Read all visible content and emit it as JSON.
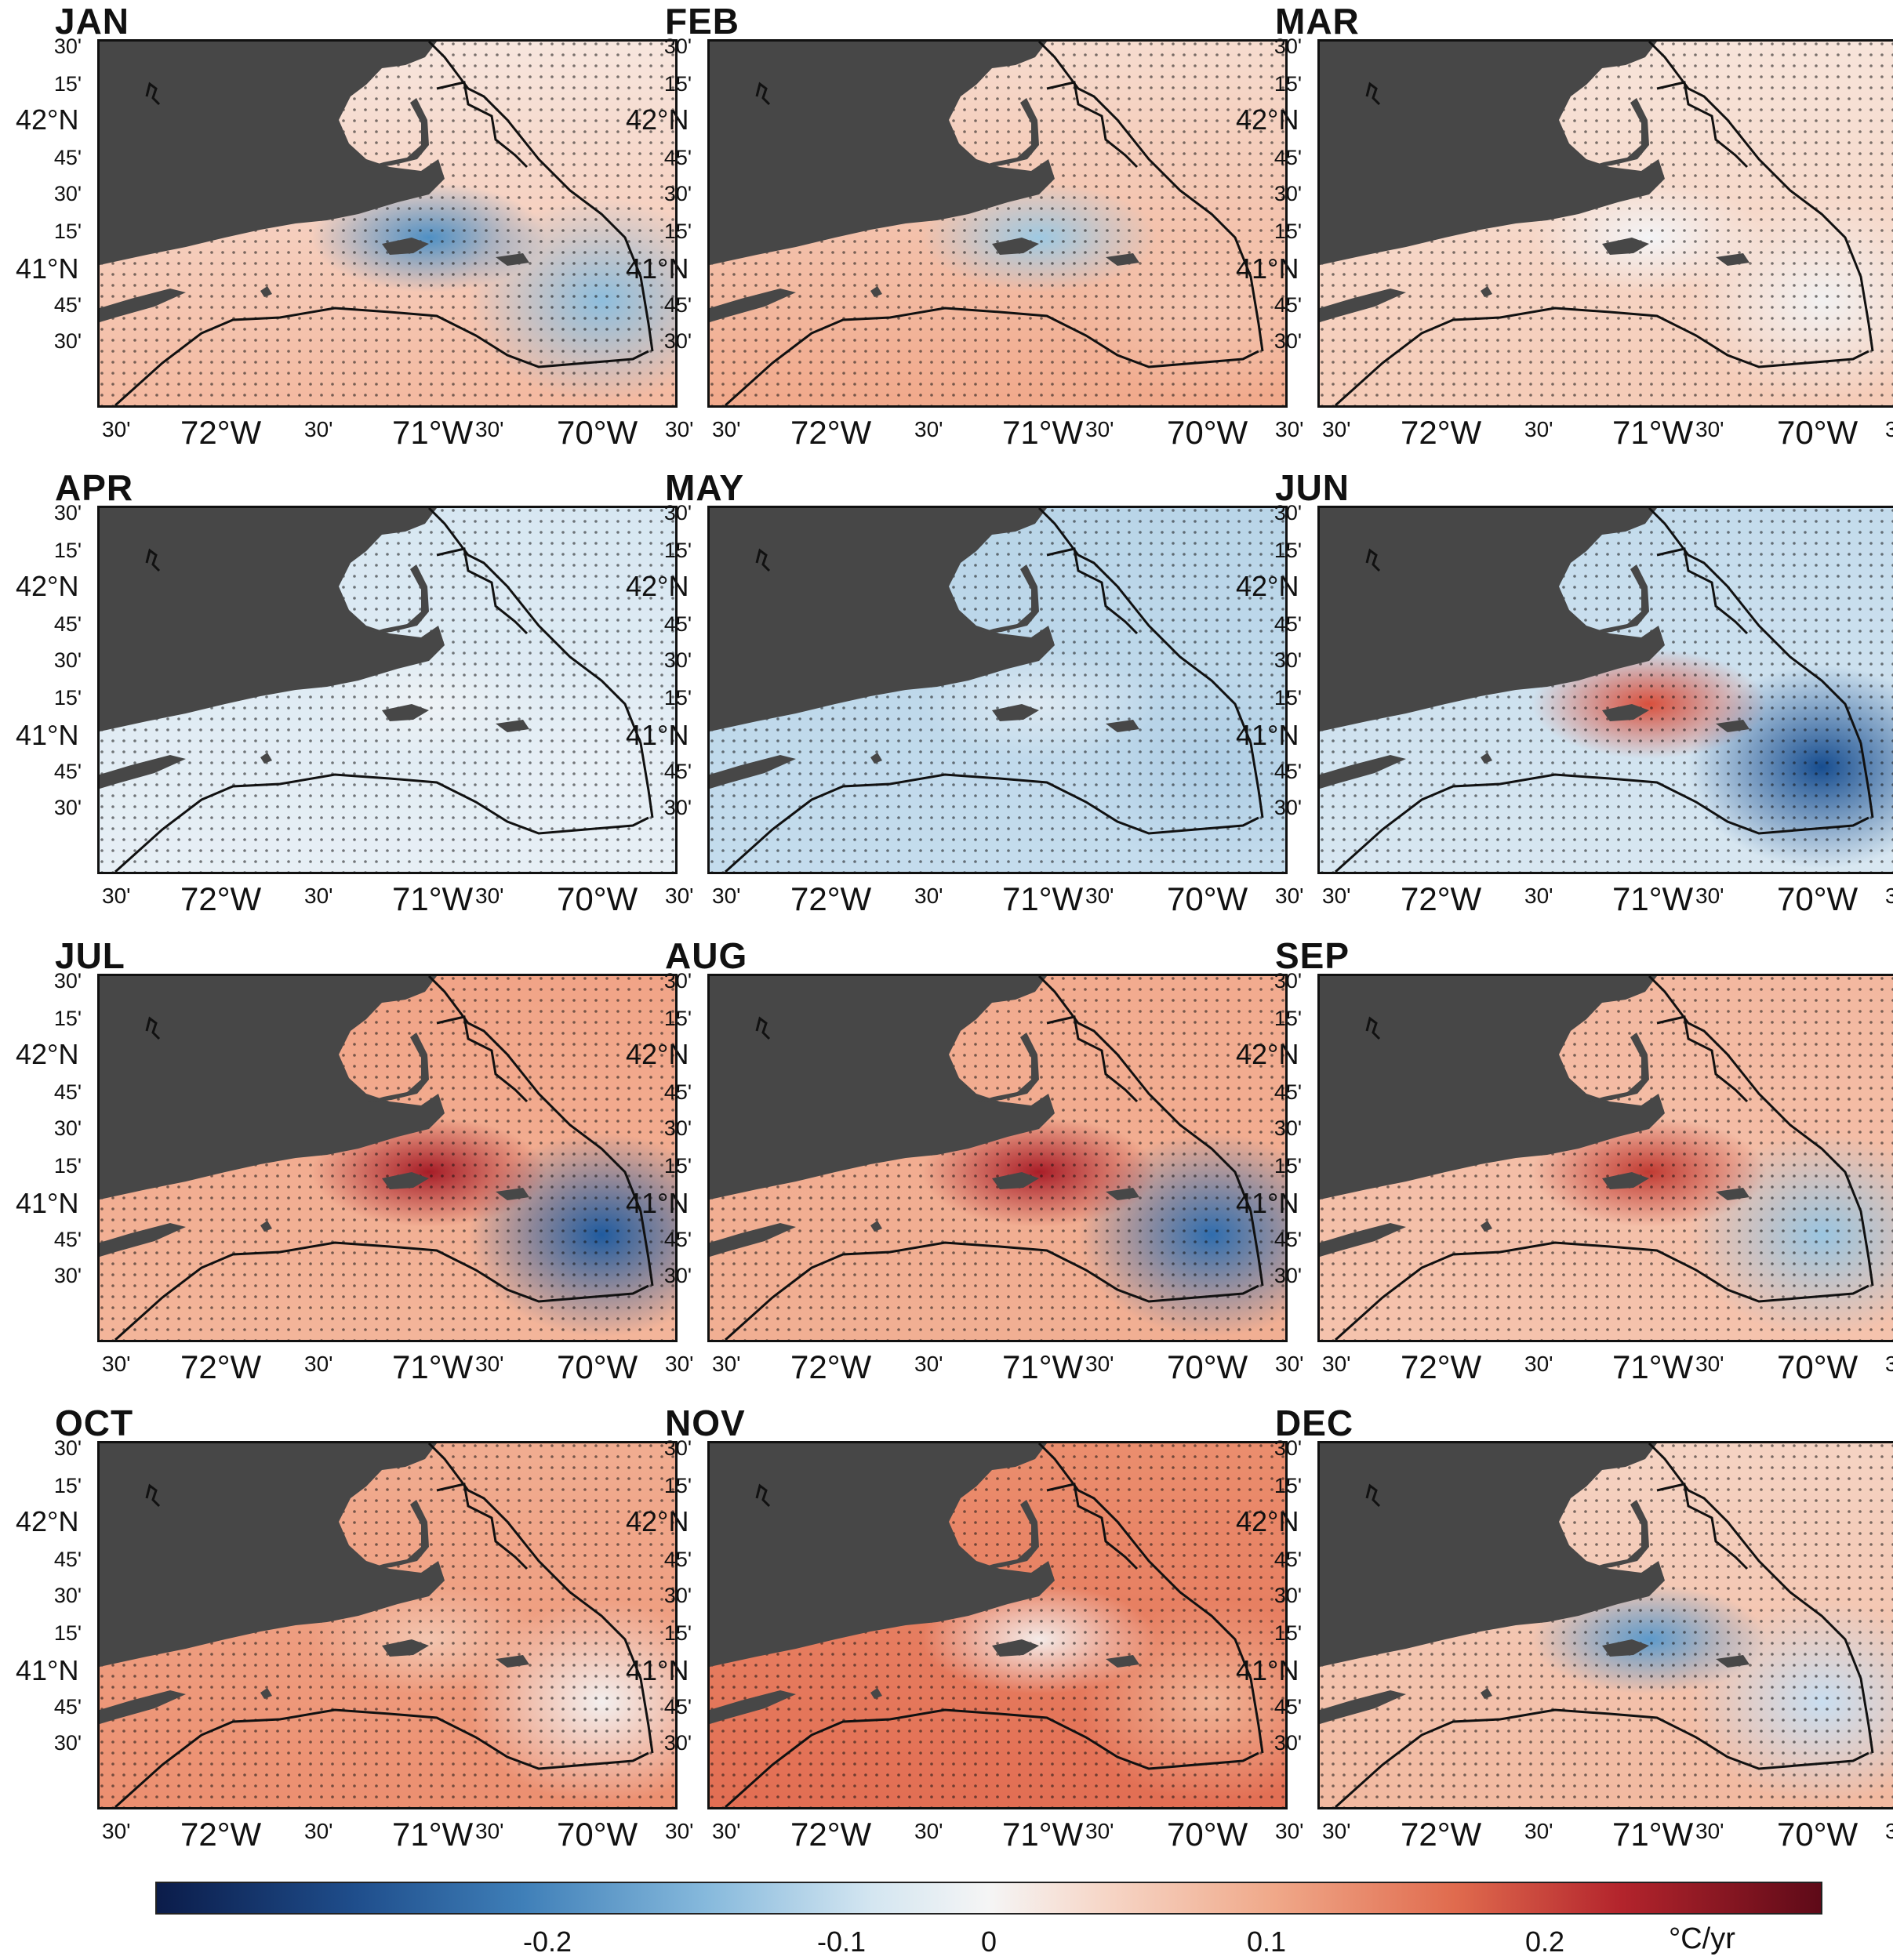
{
  "months": [
    "JAN",
    "FEB",
    "MAR",
    "APR",
    "MAY",
    "JUN",
    "JUL",
    "AUG",
    "SEP",
    "OCT",
    "NOV",
    "DEC"
  ],
  "panel_tones": [
    {
      "shelf": "#f7e6de",
      "offshore": "#f4b9a0",
      "sound": "#4f90c4",
      "east": "#8ebedd"
    },
    {
      "shelf": "#f6dccf",
      "offshore": "#f1a98b",
      "sound": "#9ec9e2",
      "east": "#f4c6b1"
    },
    {
      "shelf": "#f7e4da",
      "offshore": "#f5cbb7",
      "sound": "#f3f4f6",
      "east": "#f2f1f1"
    },
    {
      "shelf": "#d7e7f2",
      "offshore": "#e7eff5",
      "sound": "#eef2f5",
      "east": "#e9f0f6"
    },
    {
      "shelf": "#b9d5e8",
      "offshore": "#c4dced",
      "sound": "#dde9f2",
      "east": "#aecde4"
    },
    {
      "shelf": "#c3dbec",
      "offshore": "#d8e7f1",
      "sound": "#d9503d",
      "east": "#174d8f"
    },
    {
      "shelf": "#f1a487",
      "offshore": "#f3b59a",
      "sound": "#a61d27",
      "east": "#1f5b9f"
    },
    {
      "shelf": "#f2ab8f",
      "offshore": "#f1af93",
      "sound": "#a91e28",
      "east": "#2f6dae"
    },
    {
      "shelf": "#f3b8a0",
      "offshore": "#f5c3ad",
      "sound": "#c13b33",
      "east": "#9ac5e0"
    },
    {
      "shelf": "#f1ad91",
      "offshore": "#ec8f70",
      "sound": "#f3c6b1",
      "east": "#f3efee"
    },
    {
      "shelf": "#eb8e6e",
      "offshore": "#e26e53",
      "sound": "#f4ebe8",
      "east": "#f1b396"
    },
    {
      "shelf": "#f5d3c3",
      "offshore": "#f2b9a0",
      "sound": "#5d9acb",
      "east": "#c9def0"
    }
  ],
  "y_axis_labels": [
    "30'",
    "15'",
    "42°N",
    "45'",
    "30'",
    "15'",
    "41°N",
    "45'",
    "30'"
  ],
  "x_axis_labels": [
    "30'",
    "72°W",
    "30'",
    "71°W",
    "30'",
    "70°W",
    "30'"
  ],
  "colorbar": {
    "ticks": [
      "-0.2",
      "-0.1",
      "0",
      "0.1",
      "0.2"
    ],
    "tick_values": [
      -0.2,
      -0.1,
      0,
      0.1,
      0.2
    ],
    "range": [
      -0.3,
      0.3
    ],
    "unit": "°C/yr",
    "colors": [
      "#0b1c4a",
      "#3f7fb8",
      "#f5f5f5",
      "#e06b4e",
      "#5e0a18"
    ]
  },
  "land_color": "#474747"
}
